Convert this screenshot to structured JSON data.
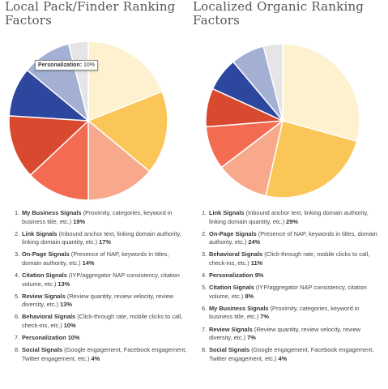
{
  "charts": {
    "left": {
      "title_line1": "Local Pack/Finder Ranking",
      "title_line2": "Factors",
      "tooltip": {
        "label": "Personalization:",
        "value": "10%"
      },
      "factors": [
        {
          "name": "My Business Signals",
          "desc": " (Proximity, categories, keyword in business title, etc.) ",
          "value": "19%"
        },
        {
          "name": "Link Signals",
          "desc": " (Inbound anchor text, linking domain authority, linking domain quantity, etc.) ",
          "value": "17%"
        },
        {
          "name": "On-Page Signals",
          "desc": " (Presence of NAP, keywords in titles, domain authority, etc.) ",
          "value": "14%"
        },
        {
          "name": "Citation Signals",
          "desc": " (IYP/aggregator NAP consistency, citation volume, etc.) ",
          "value": "13%"
        },
        {
          "name": "Review Signals",
          "desc": " (Review quantity, review velocity, review diversity, etc.) ",
          "value": "13%"
        },
        {
          "name": "Behavioral Signals",
          "desc": " (Click-through rate, mobile clicks to call, check-ins, etc.) ",
          "value": "10%"
        },
        {
          "name": "Personalization",
          "desc": "  ",
          "value": "10%"
        },
        {
          "name": "Social Signals",
          "desc": " (Google engagement, Facebook engagement, Twitter engagement, etc.) ",
          "value": "4%"
        }
      ]
    },
    "right": {
      "title_line1": "Localized Organic Ranking",
      "title_line2": "Factors",
      "factors": [
        {
          "name": "Link Signals",
          "desc": " (Inbound anchor text, linking domain authority, linking domain quantity, etc.) ",
          "value": "29%"
        },
        {
          "name": "On-Page Signals",
          "desc": " (Presence of NAP, keywords in titles, domain authority, etc.) ",
          "value": "24%"
        },
        {
          "name": "Behavioral Signals",
          "desc": " (Click-through rate, mobile clicks to call, check-ins, etc.) ",
          "value": "11%"
        },
        {
          "name": "Personalization",
          "desc": "  ",
          "value": "9%"
        },
        {
          "name": "Citation Signals",
          "desc": " (IYP/aggregator NAP consistency, citation volume, etc.) ",
          "value": "8%"
        },
        {
          "name": "My Business Signals",
          "desc": " (Proximity, categories, keyword in business title, etc.) ",
          "value": "7%"
        },
        {
          "name": "Review Signals",
          "desc": " (Review quantity, review velocity, review diversity, etc.) ",
          "value": "7%"
        },
        {
          "name": "Social Signals",
          "desc": " (Google engagement, Facebook engagement, Twitter engagement, etc.) ",
          "value": "4%"
        }
      ]
    }
  },
  "chart_data": [
    {
      "type": "pie",
      "title": "Local Pack/Finder Ranking Factors",
      "categories": [
        "My Business Signals",
        "Link Signals",
        "On-Page Signals",
        "Citation Signals",
        "Review Signals",
        "Behavioral Signals",
        "Personalization",
        "Social Signals"
      ],
      "values": [
        19,
        17,
        14,
        13,
        13,
        10,
        10,
        4
      ],
      "colors": [
        "#FDF1CF",
        "#FBC658",
        "#F8A98C",
        "#F36B50",
        "#D9492F",
        "#2D469E",
        "#A3B0D4",
        "#E5E5E5"
      ]
    },
    {
      "type": "pie",
      "title": "Localized Organic Ranking Factors",
      "categories": [
        "Link Signals",
        "On-Page Signals",
        "Behavioral Signals",
        "Personalization",
        "Citation Signals",
        "My Business Signals",
        "Review Signals",
        "Social Signals"
      ],
      "values": [
        29,
        24,
        11,
        9,
        8,
        7,
        7,
        4
      ],
      "colors": [
        "#FDF1CF",
        "#FBC658",
        "#F8A98C",
        "#F36B50",
        "#D9492F",
        "#2D469E",
        "#A3B0D4",
        "#E5E5E5"
      ]
    }
  ]
}
